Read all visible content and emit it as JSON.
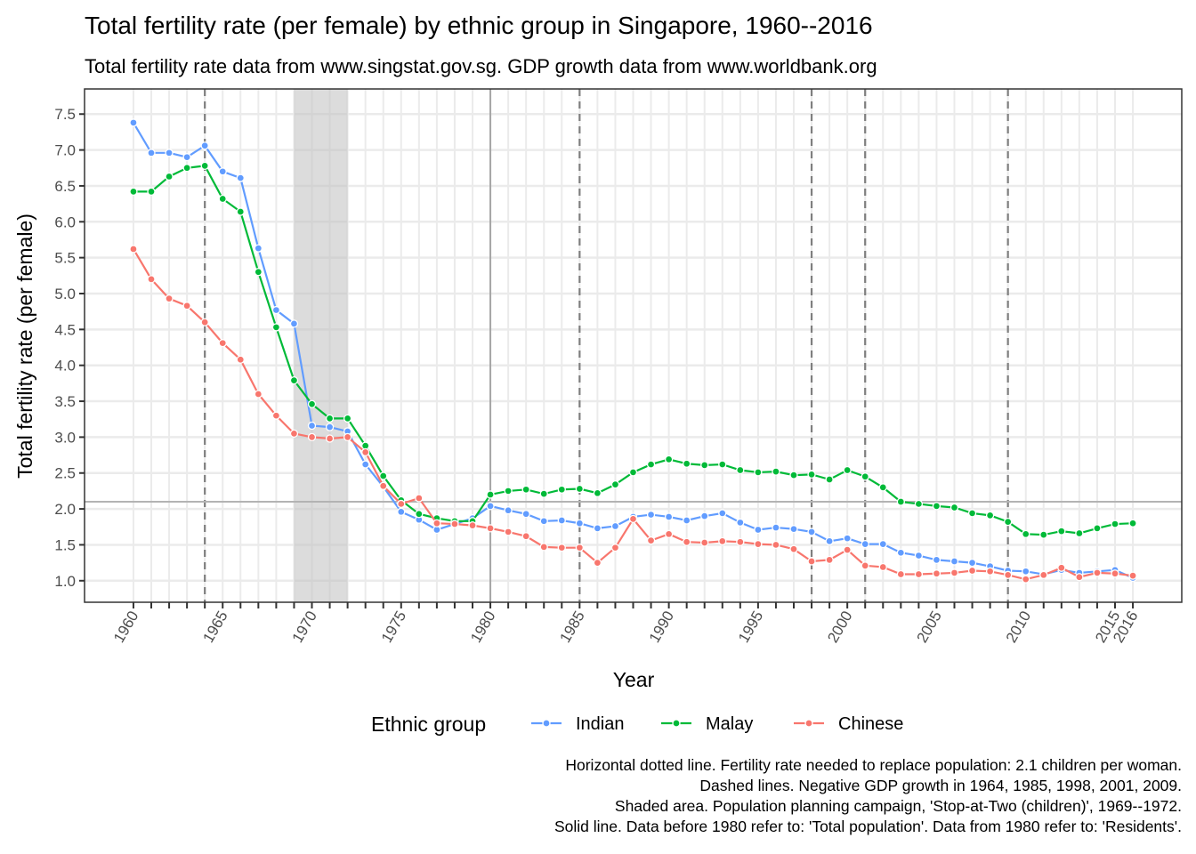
{
  "chart_data": {
    "type": "line",
    "title": "Total fertility rate (per female) by ethnic group in Singapore, 1960--2016",
    "subtitle": "Total fertility rate data from www.singstat.gov.sg. GDP growth data from www.worldbank.org",
    "x_label": "Year",
    "y_label": "Total fertility rate (per female)",
    "legend_title": "Ethnic group",
    "legend_position": "bottom",
    "grid": true,
    "x": [
      1960,
      1961,
      1962,
      1963,
      1964,
      1965,
      1966,
      1967,
      1968,
      1969,
      1970,
      1971,
      1972,
      1973,
      1974,
      1975,
      1976,
      1977,
      1978,
      1979,
      1980,
      1981,
      1982,
      1983,
      1984,
      1985,
      1986,
      1987,
      1988,
      1989,
      1990,
      1991,
      1992,
      1993,
      1994,
      1995,
      1996,
      1997,
      1998,
      1999,
      2000,
      2001,
      2002,
      2003,
      2004,
      2005,
      2006,
      2007,
      2008,
      2009,
      2010,
      2011,
      2012,
      2013,
      2014,
      2015,
      2016
    ],
    "series": [
      {
        "name": "Indian",
        "color": "#619cff",
        "values": [
          7.38,
          6.96,
          6.96,
          6.9,
          7.06,
          6.7,
          6.61,
          5.63,
          4.77,
          4.58,
          3.16,
          3.14,
          3.08,
          2.62,
          2.31,
          1.96,
          1.85,
          1.71,
          1.79,
          1.87,
          2.04,
          1.98,
          1.93,
          1.83,
          1.84,
          1.8,
          1.73,
          1.76,
          1.89,
          1.92,
          1.89,
          1.84,
          1.9,
          1.94,
          1.81,
          1.71,
          1.74,
          1.72,
          1.68,
          1.55,
          1.59,
          1.51,
          1.51,
          1.39,
          1.35,
          1.29,
          1.27,
          1.25,
          1.2,
          1.14,
          1.13,
          1.09,
          1.15,
          1.11,
          1.13,
          1.15,
          1.04
        ]
      },
      {
        "name": "Malay",
        "color": "#00ba38",
        "values": [
          6.42,
          6.42,
          6.63,
          6.75,
          6.78,
          6.32,
          6.14,
          5.3,
          4.53,
          3.79,
          3.46,
          3.26,
          3.26,
          2.88,
          2.46,
          2.12,
          1.93,
          1.87,
          1.83,
          1.83,
          2.2,
          2.25,
          2.27,
          2.21,
          2.27,
          2.28,
          2.22,
          2.34,
          2.51,
          2.62,
          2.69,
          2.63,
          2.61,
          2.62,
          2.54,
          2.51,
          2.52,
          2.47,
          2.48,
          2.41,
          2.54,
          2.45,
          2.3,
          2.1,
          2.07,
          2.04,
          2.02,
          1.94,
          1.91,
          1.82,
          1.65,
          1.64,
          1.69,
          1.66,
          1.73,
          1.79,
          1.8
        ]
      },
      {
        "name": "Chinese",
        "color": "#f8766d",
        "values": [
          5.62,
          5.2,
          4.93,
          4.83,
          4.6,
          4.31,
          4.08,
          3.6,
          3.3,
          3.05,
          3.0,
          2.98,
          3.0,
          2.79,
          2.32,
          2.07,
          2.15,
          1.8,
          1.79,
          1.77,
          1.73,
          1.68,
          1.62,
          1.47,
          1.46,
          1.46,
          1.25,
          1.46,
          1.86,
          1.56,
          1.65,
          1.54,
          1.53,
          1.55,
          1.54,
          1.51,
          1.5,
          1.44,
          1.27,
          1.29,
          1.43,
          1.21,
          1.19,
          1.09,
          1.09,
          1.1,
          1.11,
          1.14,
          1.13,
          1.08,
          1.02,
          1.08,
          1.18,
          1.05,
          1.11,
          1.1,
          1.07
        ]
      }
    ],
    "xlim": [
      1957.26,
      2018.74
    ],
    "xticks": [
      1960,
      1965,
      1970,
      1975,
      1980,
      1985,
      1990,
      1995,
      2000,
      2005,
      2010,
      2015,
      2016
    ],
    "ylim": [
      0.7,
      7.85
    ],
    "yticks": [
      {
        "value": 1,
        "label": "1.0"
      },
      1.5,
      {
        "value": 2,
        "label": "2.0"
      },
      2.5,
      {
        "value": 3,
        "label": "3.0"
      },
      3.5,
      {
        "value": 4,
        "label": "4.0"
      },
      4.5,
      {
        "value": 5,
        "label": "5.0"
      },
      5.5,
      {
        "value": 6,
        "label": "6.0"
      },
      6.5,
      {
        "value": 7,
        "label": "7.0"
      },
      7.5
    ],
    "dashed_x": [
      1964,
      1985,
      1998,
      2001,
      2009
    ],
    "solid_x": 1980,
    "hline": 2.1,
    "shade_x": [
      1969,
      1972
    ],
    "caption": [
      "Horizontal dotted line. Fertility rate needed to replace population: 2.1 children per woman.",
      "Dashed lines. Negative GDP growth in 1964, 1985, 1998, 2001, 2009.",
      "Shaded area. Population planning campaign, 'Stop-at-Two (children)', 1969--1972.",
      "Solid line. Data before 1980 refer to: 'Total population'. Data from 1980 refer to: 'Residents'."
    ]
  }
}
